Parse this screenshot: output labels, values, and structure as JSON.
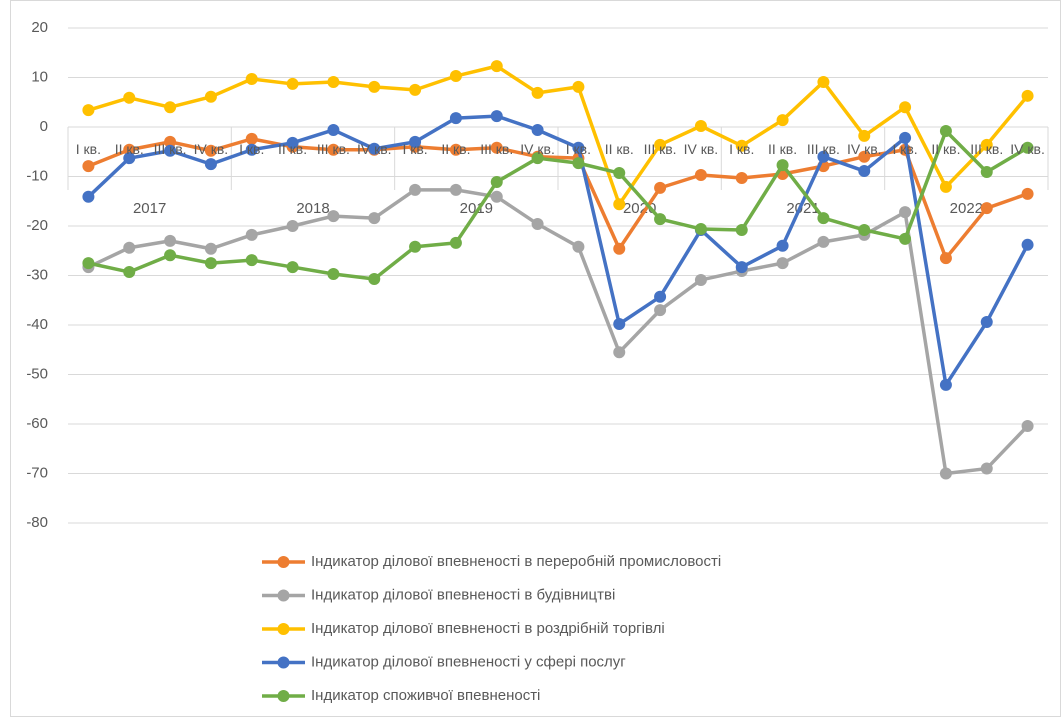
{
  "chart_data": {
    "type": "line",
    "categories": [
      "I кв.",
      "II кв.",
      "III кв.",
      "IV кв.",
      "I кв.",
      "II кв.",
      "III кв.",
      "IV кв.",
      "I кв.",
      "II кв.",
      "III кв.",
      "IV кв.",
      "I кв.",
      "II кв.",
      "III кв.",
      "IV кв.",
      "I кв.",
      "II кв.",
      "III кв.",
      "IV кв.",
      "I кв.",
      "II кв.",
      "III кв.",
      "IV кв."
    ],
    "category_groups": [
      "2017",
      "2018",
      "2019",
      "2020",
      "2021",
      "2022"
    ],
    "ylim": [
      -80,
      20
    ],
    "yticks": [
      -80,
      -70,
      -60,
      -50,
      -40,
      -30,
      -20,
      -10,
      0,
      10,
      20
    ],
    "grid": true,
    "legend": "bottom",
    "series": [
      {
        "name": "Індикатор ділової впевненості в переробній промисловості",
        "color": "#ED7D31",
        "values": [
          -7.9,
          -4.6,
          -3,
          -4.8,
          -2.4,
          -4,
          -4.6,
          -4.6,
          -4,
          -4.6,
          -4.2,
          -6,
          -6.3,
          -24.6,
          -12.3,
          -9.7,
          -10.3,
          -9.5,
          -7.9,
          -6,
          -4.6,
          -26.5,
          -16.4,
          -13.5
        ]
      },
      {
        "name": "Індикатор ділової впевненості в будівництві",
        "color": "#A5A5A5",
        "values": [
          -28.3,
          -24.4,
          -23,
          -24.6,
          -21.8,
          -20,
          -18,
          -18.4,
          -12.7,
          -12.7,
          -14.1,
          -19.6,
          -24.2,
          -45.5,
          -37,
          -30.9,
          -29.1,
          -27.5,
          -23.2,
          -21.8,
          -17.2,
          -70,
          -69,
          -60.4
        ]
      },
      {
        "name": "Індикатор ділової впевненості в роздрібній торгівлі",
        "color": "#FFC000",
        "values": [
          3.4,
          5.9,
          4,
          6.1,
          9.7,
          8.7,
          9.1,
          8.1,
          7.5,
          10.3,
          12.3,
          6.9,
          8.1,
          -15.6,
          -3.6,
          0.2,
          -3.8,
          1.4,
          9.1,
          -1.8,
          4,
          -12.1,
          -3.6,
          6.3
        ]
      },
      {
        "name": "Індикатор ділової впевненості у сфері послуг",
        "color": "#4472C4",
        "values": [
          -14.1,
          -6.3,
          -4.8,
          -7.5,
          -4.6,
          -3.2,
          -0.6,
          -4.4,
          -3,
          1.8,
          2.2,
          -0.6,
          -4.2,
          -39.8,
          -34.3,
          -20.8,
          -28.3,
          -24,
          -6,
          -8.9,
          -2.2,
          -52.1,
          -39.4,
          -23.8
        ]
      },
      {
        "name": "Індикатор споживчої впевненості",
        "color": "#70AD47",
        "values": [
          -27.5,
          -29.3,
          -25.9,
          -27.5,
          -26.9,
          -28.3,
          -29.7,
          -30.7,
          -24.2,
          -23.4,
          -11.1,
          -6.3,
          -7.3,
          -9.3,
          -18.6,
          -20.6,
          -20.8,
          -7.7,
          -18.4,
          -20.8,
          -22.6,
          -0.8,
          -9.1,
          -4.2
        ]
      }
    ]
  }
}
